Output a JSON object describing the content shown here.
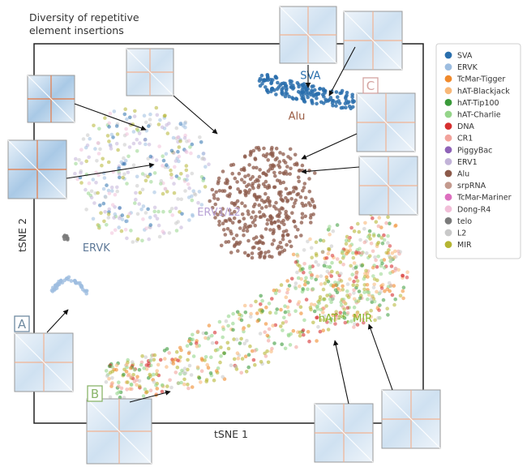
{
  "chart_data": {
    "type": "scatter",
    "title": "Diversity of repetitive element insertions",
    "xlabel": "tSNE 1",
    "ylabel": "tSNE 2",
    "grid": false,
    "legend_position": "right",
    "legend": [
      {
        "name": "SVA",
        "color": "#2a6fad"
      },
      {
        "name": "ERVK",
        "color": "#9dbde0"
      },
      {
        "name": "TcMar-Tigger",
        "color": "#f08a2c"
      },
      {
        "name": "hAT-Blackjack",
        "color": "#f8b878"
      },
      {
        "name": "hAT-Tip100",
        "color": "#3a9a3a"
      },
      {
        "name": "hAT-Charlie",
        "color": "#95d58a"
      },
      {
        "name": "DNA",
        "color": "#d62f2f"
      },
      {
        "name": "CR1",
        "color": "#f2a39c"
      },
      {
        "name": "PiggyBac",
        "color": "#8f63b8"
      },
      {
        "name": "ERV1",
        "color": "#c2b3d8"
      },
      {
        "name": "Alu",
        "color": "#8c5a4a"
      },
      {
        "name": "srpRNA",
        "color": "#c49a8e"
      },
      {
        "name": "TcMar-Mariner",
        "color": "#dd6fbf"
      },
      {
        "name": "Dong-R4",
        "color": "#f1bfd8"
      },
      {
        "name": "telo",
        "color": "#7a7a7a"
      },
      {
        "name": "L2",
        "color": "#c9c9c9"
      },
      {
        "name": "MIR",
        "color": "#b5b532"
      }
    ],
    "cluster_labels": [
      {
        "text": "SVA",
        "color": "#2a6fad",
        "x": 0.42,
        "y": 0.86
      },
      {
        "text": "Alu",
        "color": "#9a5c44",
        "x": 0.35,
        "y": 0.7
      },
      {
        "text": "ERV1/L2",
        "color": "#b8a2d6",
        "x": -0.05,
        "y": 0.32
      },
      {
        "text": "ERVK",
        "color": "#5d7897",
        "x": -0.68,
        "y": 0.18
      },
      {
        "text": "hAT-*, MIR",
        "color": "#8ab52c",
        "x": 0.6,
        "y": -0.1
      }
    ],
    "panel_letters": [
      {
        "text": "A",
        "color": "#6f8aa0"
      },
      {
        "text": "B",
        "color": "#8ab56a"
      },
      {
        "text": "C",
        "color": "#d4a3a0"
      }
    ]
  }
}
